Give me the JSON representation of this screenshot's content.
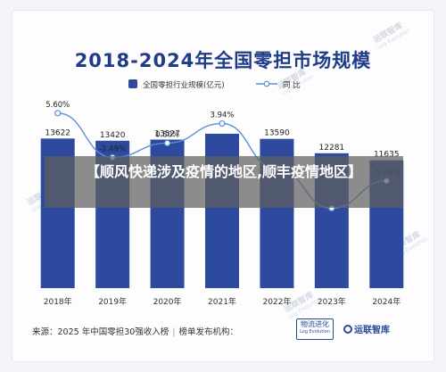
{
  "title": "2018-2024年全国零担市场规模",
  "watermarks": [
    {
      "text": "运联智库",
      "sub": "Log Evolution"
    },
    {
      "text": "运联智库",
      "sub": "Log Evolution"
    },
    {
      "text": "运联智库",
      "sub": "Log Evolution"
    },
    {
      "text": "运联智库",
      "sub": "Log Evolution"
    },
    {
      "text": "运联智库",
      "sub": "Log Evolution"
    }
  ],
  "overlay_text": "【顺风快递涉及疫情的地区,顺丰疫情地区】",
  "footer": {
    "source": "来源：2025 年中国零担30强收入榜",
    "separator": "|",
    "publisher": "榜单发布机构："
  },
  "logos": {
    "logo1_line1": "物流进化",
    "logo1_line2": "Log Evolution",
    "logo2": "运联智库"
  },
  "colors": {
    "bar": "#2e4a9e",
    "line": "#5b8fd6",
    "title": "#1f3c88"
  },
  "chart_data": {
    "type": "bar",
    "categories": [
      "2018年",
      "2019年",
      "2020年",
      "2021年",
      "2022年",
      "2023年",
      "2024年"
    ],
    "series": [
      {
        "name": "全国零担行业规模(亿元)",
        "type": "bar",
        "values": [
          13622,
          13420,
          13527,
          14056,
          13590,
          12281,
          11635
        ],
        "labels": [
          "13622",
          "13420",
          "13527",
          "",
          "13590",
          "12281",
          "11635"
        ]
      },
      {
        "name": "同 比",
        "type": "line",
        "values": [
          5.6,
          -1.49,
          0.8,
          3.94,
          -3.32,
          -9.63,
          -5.26
        ],
        "labels": [
          "5.60%",
          "-1.49%",
          "0.80%",
          "3.94%",
          "",
          "",
          "-5.26%"
        ]
      }
    ],
    "ylim": [
      0,
      16000
    ],
    "y2lim": [
      -14,
      10
    ],
    "legend": "top-center",
    "grid": false
  }
}
